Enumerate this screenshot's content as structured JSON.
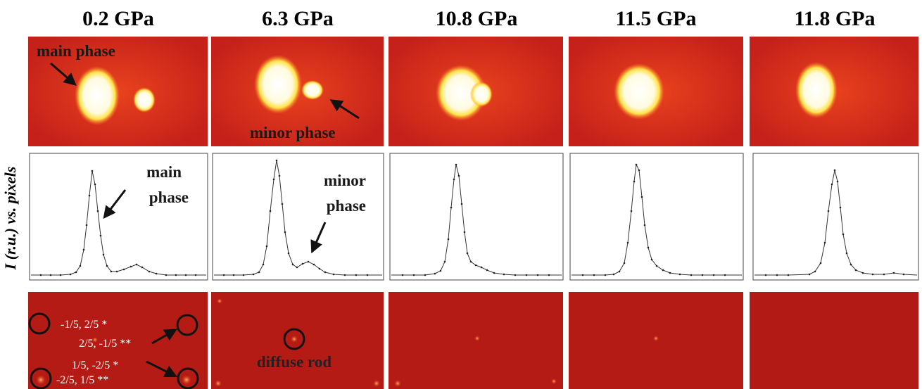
{
  "column_titles": [
    "0.2 GPa",
    "6.3 GPa",
    "10.8 GPa",
    "11.5 GPa",
    "11.8 GPa"
  ],
  "y_axis_label": "I (r.u.) vs. pixels",
  "annotations": {
    "top_main": "main phase",
    "top_minor": "minor phase",
    "plot_main": [
      "main",
      "phase"
    ],
    "plot_minor": [
      "minor",
      "phase"
    ],
    "bottom_labels": [
      "-1/5, 2/5 *",
      "2/5, -1/5 **",
      "1/5, -2/5 *",
      "-2/5, 1/5 **"
    ],
    "diffuse": "diffuse rod"
  }
}
